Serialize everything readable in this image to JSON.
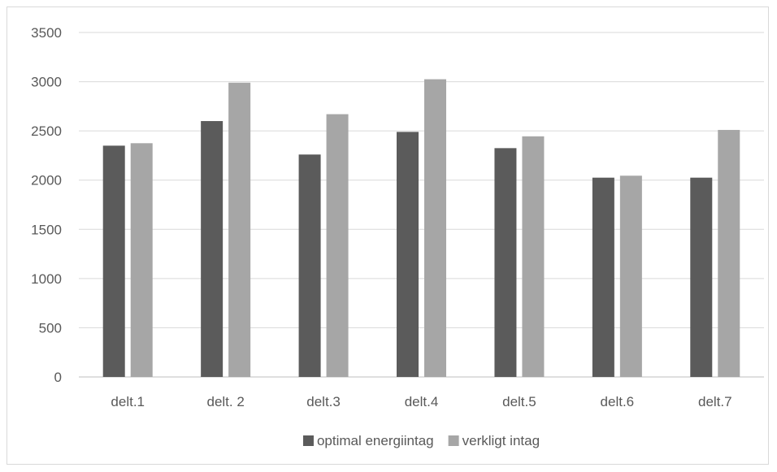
{
  "chart_data": {
    "type": "bar",
    "categories": [
      "delt.1",
      "delt. 2",
      "delt.3",
      "delt.4",
      "delt.5",
      "delt.6",
      "delt.7"
    ],
    "series": [
      {
        "name": "optimal energiintag",
        "color": "#5b5b5b",
        "values": [
          2350,
          2600,
          2260,
          2490,
          2325,
          2025,
          2025
        ]
      },
      {
        "name": "verkligt intag",
        "color": "#a6a6a6",
        "values": [
          2375,
          2990,
          2670,
          3025,
          2445,
          2045,
          2510
        ]
      }
    ],
    "yticks": [
      0,
      500,
      1000,
      1500,
      2000,
      2500,
      3000,
      3500
    ],
    "ylim": [
      0,
      3500
    ],
    "grid": true,
    "legend_position": "bottom",
    "title": "",
    "xlabel": "",
    "ylabel": ""
  }
}
